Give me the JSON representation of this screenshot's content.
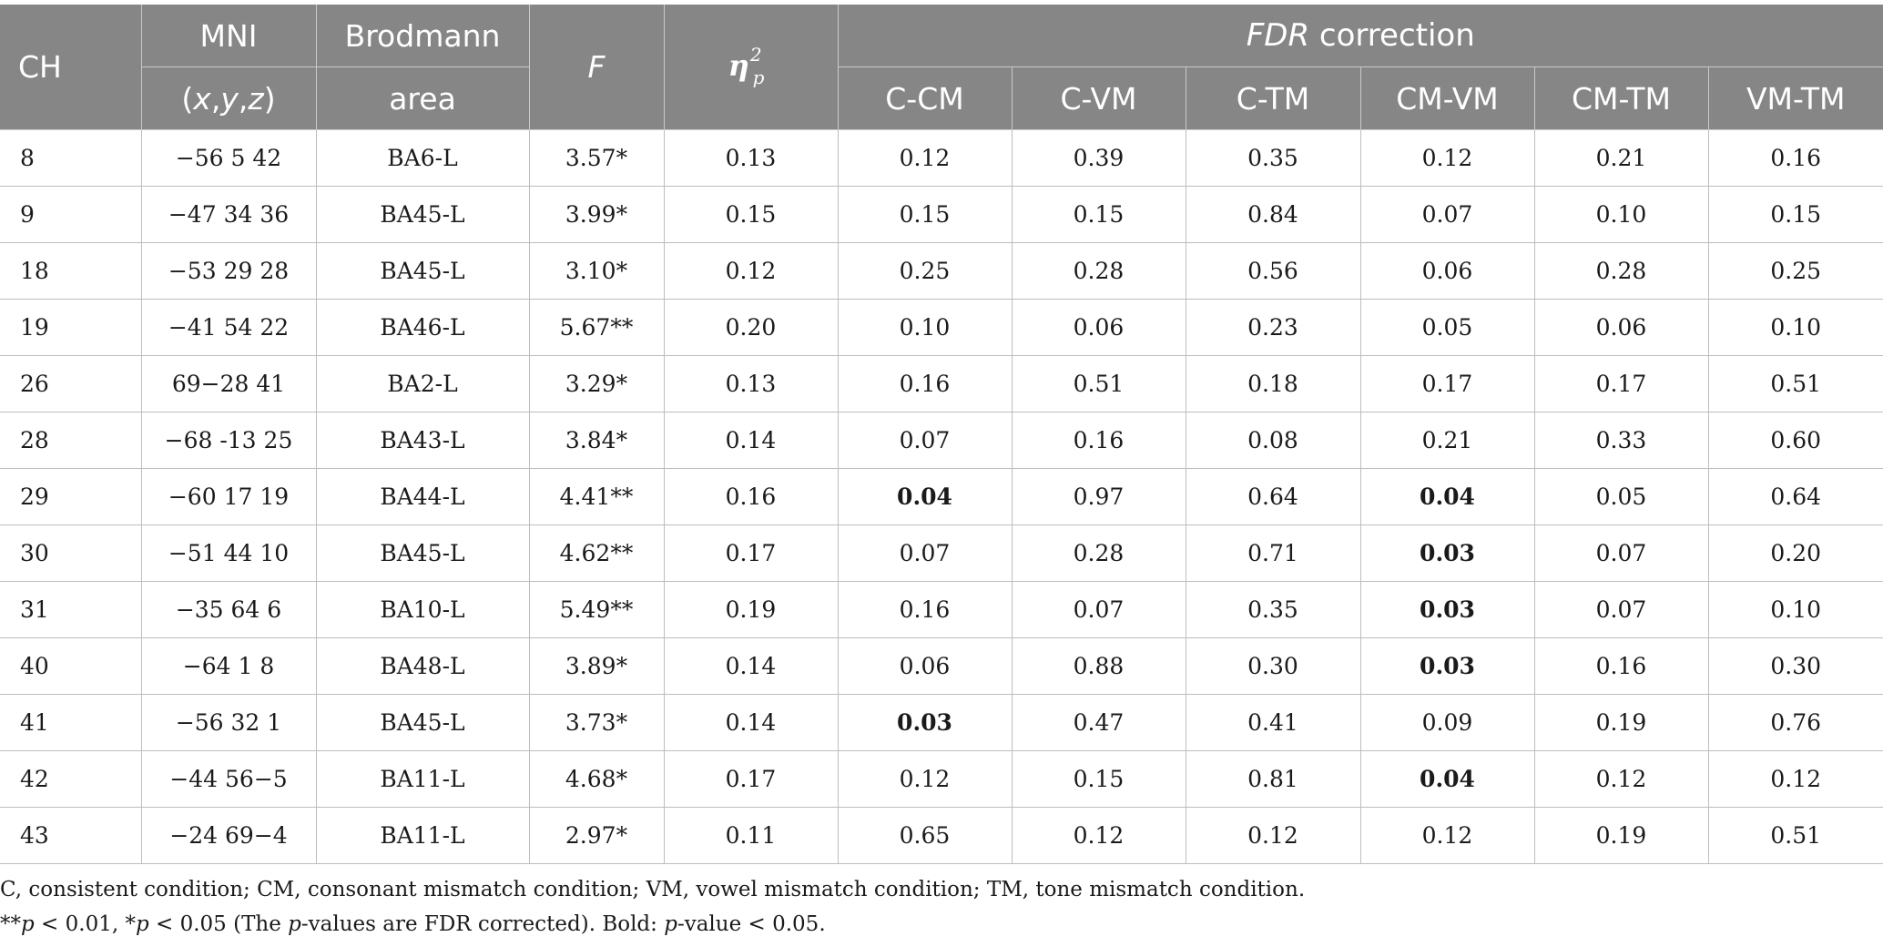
{
  "header": {
    "ch": "CH",
    "mni_line1": "MNI",
    "mni_line2": "(x,y,z)",
    "brodmann_line1": "Brodmann",
    "brodmann_line2": "area",
    "f": "F",
    "eta_symbol": "η",
    "eta_sup": "2",
    "eta_sub": "p",
    "fdr_italic": "FDR",
    "fdr_rest": " correction",
    "comparisons": [
      "C-CM",
      "C-VM",
      "C-TM",
      "CM-VM",
      "CM-TM",
      "VM-TM"
    ]
  },
  "rows": [
    {
      "ch": "8",
      "mni": "−56 5 42",
      "area": "BA6-L",
      "f": "3.57*",
      "eta": "0.13",
      "p": [
        "0.12",
        "0.39",
        "0.35",
        "0.12",
        "0.21",
        "0.16"
      ],
      "bold": []
    },
    {
      "ch": "9",
      "mni": "−47 34 36",
      "area": "BA45-L",
      "f": "3.99*",
      "eta": "0.15",
      "p": [
        "0.15",
        "0.15",
        "0.84",
        "0.07",
        "0.10",
        "0.15"
      ],
      "bold": []
    },
    {
      "ch": "18",
      "mni": "−53 29 28",
      "area": "BA45-L",
      "f": "3.10*",
      "eta": "0.12",
      "p": [
        "0.25",
        "0.28",
        "0.56",
        "0.06",
        "0.28",
        "0.25"
      ],
      "bold": []
    },
    {
      "ch": "19",
      "mni": "−41 54 22",
      "area": "BA46-L",
      "f": "5.67**",
      "eta": "0.20",
      "p": [
        "0.10",
        "0.06",
        "0.23",
        "0.05",
        "0.06",
        "0.10"
      ],
      "bold": []
    },
    {
      "ch": "26",
      "mni": "69−28 41",
      "area": "BA2-L",
      "f": "3.29*",
      "eta": "0.13",
      "p": [
        "0.16",
        "0.51",
        "0.18",
        "0.17",
        "0.17",
        "0.51"
      ],
      "bold": []
    },
    {
      "ch": "28",
      "mni": "−68 -13 25",
      "area": "BA43-L",
      "f": "3.84*",
      "eta": "0.14",
      "p": [
        "0.07",
        "0.16",
        "0.08",
        "0.21",
        "0.33",
        "0.60"
      ],
      "bold": []
    },
    {
      "ch": "29",
      "mni": "−60 17 19",
      "area": "BA44-L",
      "f": "4.41**",
      "eta": "0.16",
      "p": [
        "0.04",
        "0.97",
        "0.64",
        "0.04",
        "0.05",
        "0.64"
      ],
      "bold": [
        0,
        3
      ]
    },
    {
      "ch": "30",
      "mni": "−51 44 10",
      "area": "BA45-L",
      "f": "4.62**",
      "eta": "0.17",
      "p": [
        "0.07",
        "0.28",
        "0.71",
        "0.03",
        "0.07",
        "0.20"
      ],
      "bold": [
        3
      ]
    },
    {
      "ch": "31",
      "mni": "−35 64 6",
      "area": "BA10-L",
      "f": "5.49**",
      "eta": "0.19",
      "p": [
        "0.16",
        "0.07",
        "0.35",
        "0.03",
        "0.07",
        "0.10"
      ],
      "bold": [
        3
      ]
    },
    {
      "ch": "40",
      "mni": "−64 1 8",
      "area": "BA48-L",
      "f": "3.89*",
      "eta": "0.14",
      "p": [
        "0.06",
        "0.88",
        "0.30",
        "0.03",
        "0.16",
        "0.30"
      ],
      "bold": [
        3
      ]
    },
    {
      "ch": "41",
      "mni": "−56 32 1",
      "area": "BA45-L",
      "f": "3.73*",
      "eta": "0.14",
      "p": [
        "0.03",
        "0.47",
        "0.41",
        "0.09",
        "0.19",
        "0.76"
      ],
      "bold": [
        0
      ]
    },
    {
      "ch": "42",
      "mni": "−44 56−5",
      "area": "BA11-L",
      "f": "4.68*",
      "eta": "0.17",
      "p": [
        "0.12",
        "0.15",
        "0.81",
        "0.04",
        "0.12",
        "0.12"
      ],
      "bold": [
        3
      ]
    },
    {
      "ch": "43",
      "mni": "−24 69−4",
      "area": "BA11-L",
      "f": "2.97*",
      "eta": "0.11",
      "p": [
        "0.65",
        "0.12",
        "0.12",
        "0.12",
        "0.19",
        "0.51"
      ],
      "bold": []
    }
  ],
  "notes": {
    "line1": "C, consistent condition; CM, consonant mismatch condition; VM, vowel mismatch condition; TM, tone mismatch condition.",
    "l2_a": "**",
    "l2_b": "p",
    "l2_c": " < 0.01, *",
    "l2_d": "p",
    "l2_e": " < 0.05 (The ",
    "l2_f": "p",
    "l2_g": "-values are FDR corrected). Bold: ",
    "l2_h": "p",
    "l2_i": "-value < 0.05."
  }
}
